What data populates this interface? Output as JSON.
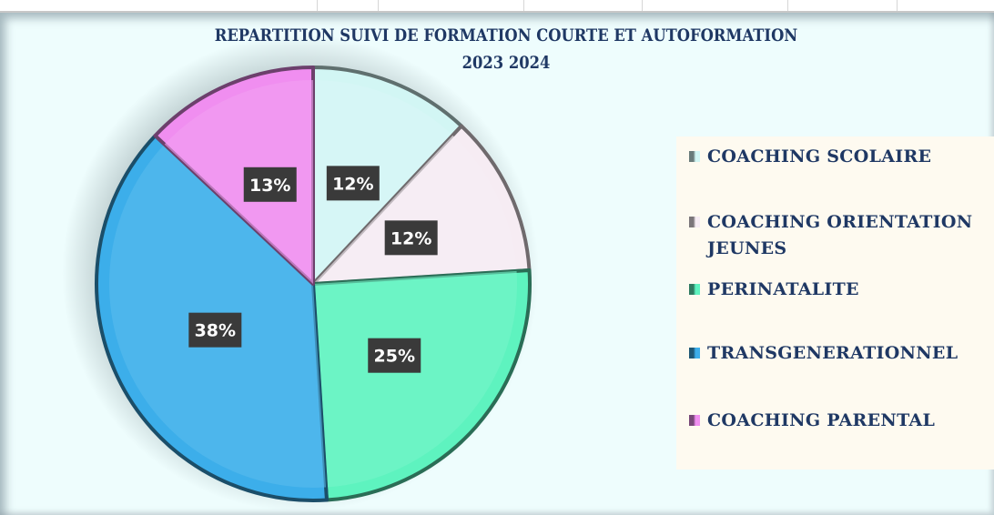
{
  "chart_data": {
    "type": "pie",
    "title": "REPARTITION SUIVI DE FORMATION COURTE ET AUTOFORMATION",
    "subtitle": "2023 2024",
    "categories": [
      "COACHING SCOLAIRE",
      "COACHING ORIENTATION JEUNES",
      "PERINATALITE",
      "TRANSGENERATIONNEL",
      "COACHING PARENTAL"
    ],
    "values": [
      12,
      12,
      25,
      38,
      13
    ],
    "data_labels": [
      "12%",
      "12%",
      "25%",
      "38%",
      "13%"
    ],
    "colors": [
      "#d2f6f4",
      "#f6ecf3",
      "#5ef3bf",
      "#3caeea",
      "#f08ef0"
    ],
    "start_angle": "top",
    "direction": "clockwise",
    "legend_position": "right"
  }
}
